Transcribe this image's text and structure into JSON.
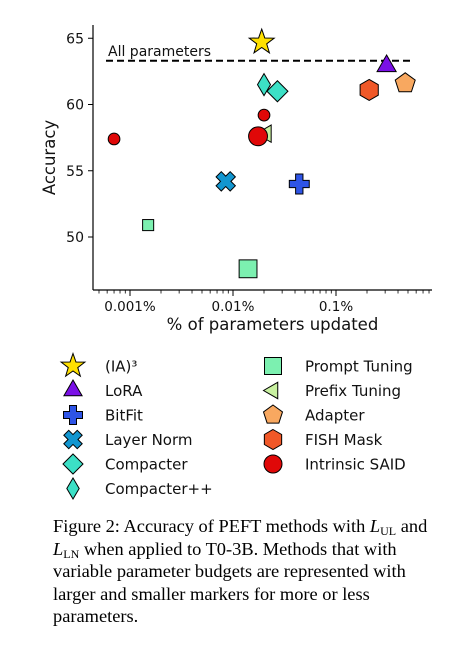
{
  "chart_data": {
    "type": "scatter",
    "xlabel": "% of parameters updated",
    "ylabel": "Accuracy",
    "xscale": "log",
    "xlim": [
      0.0004,
      2.0
    ],
    "ylim": [
      46,
      66
    ],
    "xticks": [
      {
        "value": 0.001,
        "label": "0.001%"
      },
      {
        "value": 0.01,
        "label": "0.01%"
      },
      {
        "value": 0.1,
        "label": "0.1%"
      }
    ],
    "yticks": [
      {
        "value": 50,
        "label": "50"
      },
      {
        "value": 55,
        "label": "55"
      },
      {
        "value": 60,
        "label": "60"
      },
      {
        "value": 65,
        "label": "65"
      }
    ],
    "reference_line": {
      "label": "All parameters",
      "y": 63.3
    },
    "grid": false,
    "series": [
      {
        "name": "(IA)³",
        "marker": "star",
        "color": "#ffe000",
        "points": [
          {
            "x": 0.019,
            "y": 64.7,
            "size": "large"
          }
        ]
      },
      {
        "name": "LoRA",
        "marker": "triangle-up",
        "color": "#7a10e6",
        "points": [
          {
            "x": 0.31,
            "y": 62.9,
            "size": "large"
          }
        ]
      },
      {
        "name": "BitFit",
        "marker": "plus",
        "color": "#2e54e6",
        "points": [
          {
            "x": 0.044,
            "y": 54.0,
            "size": "large"
          }
        ]
      },
      {
        "name": "Layer Norm",
        "marker": "x",
        "color": "#1296d0",
        "points": [
          {
            "x": 0.0085,
            "y": 54.2,
            "size": "large"
          }
        ]
      },
      {
        "name": "Compacter",
        "marker": "diamond",
        "color": "#3ce0c6",
        "points": [
          {
            "x": 0.027,
            "y": 61.0,
            "size": "large"
          }
        ]
      },
      {
        "name": "Compacter++",
        "marker": "thin-diamond",
        "color": "#3ce0c6",
        "points": [
          {
            "x": 0.02,
            "y": 61.5,
            "size": "large"
          }
        ]
      },
      {
        "name": "Prompt Tuning",
        "marker": "square",
        "color": "#7cf0b0",
        "points": [
          {
            "x": 0.0015,
            "y": 50.9,
            "size": "small"
          },
          {
            "x": 0.014,
            "y": 47.6,
            "size": "large"
          }
        ]
      },
      {
        "name": "Prefix Tuning",
        "marker": "triangle-left",
        "color": "#c8f0a0",
        "points": [
          {
            "x": 0.021,
            "y": 57.8,
            "size": "large"
          }
        ]
      },
      {
        "name": "Adapter",
        "marker": "pentagon",
        "color": "#f8a860",
        "points": [
          {
            "x": 0.47,
            "y": 61.6,
            "size": "large"
          }
        ]
      },
      {
        "name": "FISH Mask",
        "marker": "hexagon",
        "color": "#f05828",
        "points": [
          {
            "x": 0.21,
            "y": 61.1,
            "size": "large"
          }
        ]
      },
      {
        "name": "Intrinsic SAID",
        "marker": "circle",
        "color": "#e00808",
        "points": [
          {
            "x": 0.0007,
            "y": 57.4,
            "size": "small"
          },
          {
            "x": 0.02,
            "y": 59.2,
            "size": "small"
          },
          {
            "x": 0.0175,
            "y": 57.6,
            "size": "large"
          }
        ]
      }
    ],
    "legend": {
      "placement": "below",
      "columns": 2
    }
  },
  "caption": {
    "label": "Figure 2:",
    "text_1": "Accuracy of PEFT methods with",
    "sym": "L",
    "sub_ul": "UL",
    "and": "and",
    "sub_ln": "LN",
    "text_2": "when applied to T0-3B. Methods that with variable parameter budgets are represented with larger and smaller markers for more or less parameters."
  }
}
